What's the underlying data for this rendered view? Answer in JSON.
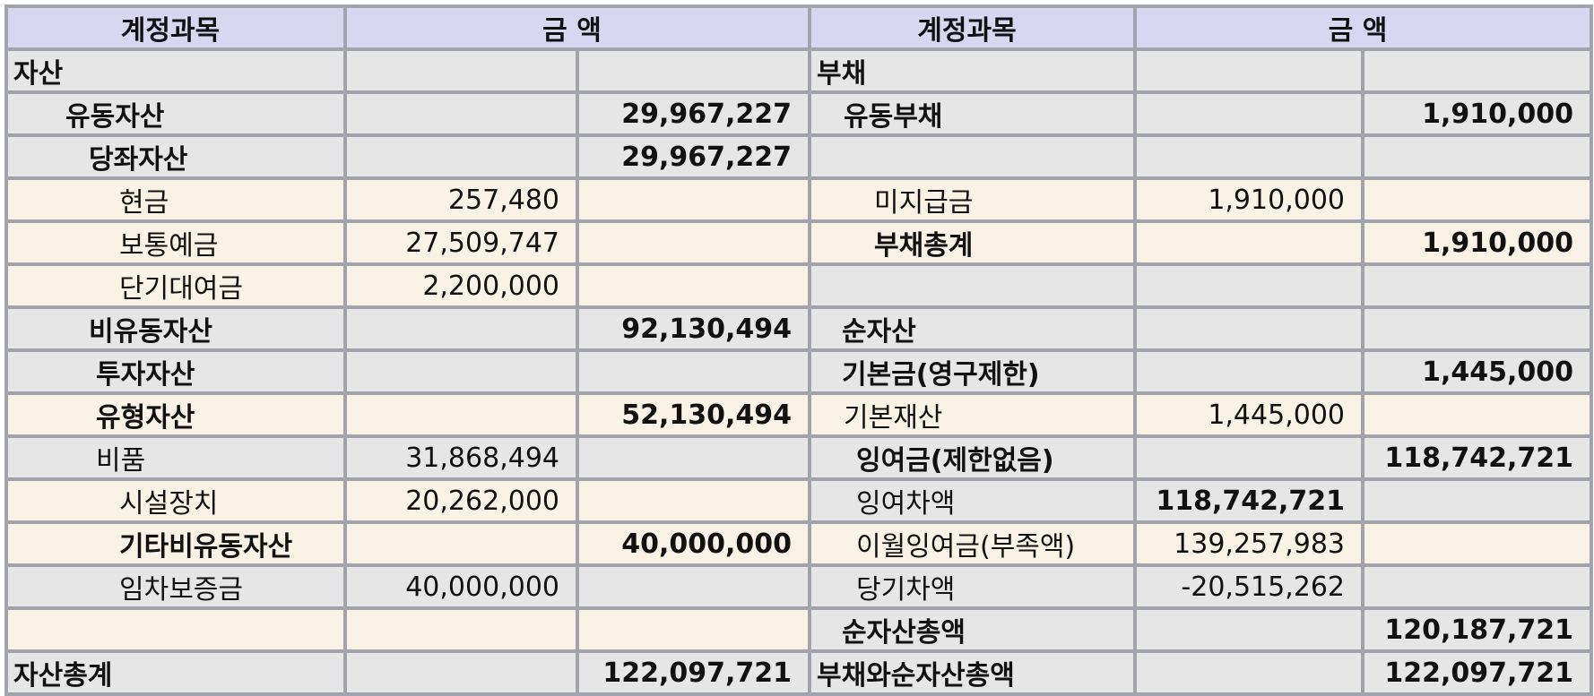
{
  "header": {
    "left_account": "계정과목",
    "left_amount": "금 액",
    "right_account": "계정과목",
    "right_amount": "금 액"
  },
  "rows": [
    {
      "la": "자산",
      "lb": "",
      "lc": "",
      "ra": "부채",
      "rb": "",
      "rc": ""
    },
    {
      "la": "유동자산",
      "lb": "",
      "lc": "29,967,227",
      "ra": "유동부채",
      "rb": "",
      "rc": "1,910,000"
    },
    {
      "la": "당좌자산",
      "lb": "",
      "lc": "29,967,227",
      "ra": "",
      "rb": "",
      "rc": ""
    },
    {
      "la": "현금",
      "lb": "257,480",
      "lc": "",
      "ra": "미지급금",
      "rb": "1,910,000",
      "rc": ""
    },
    {
      "la": "보통예금",
      "lb": "27,509,747",
      "lc": "",
      "ra": "부채총계",
      "rb": "",
      "rc": "1,910,000"
    },
    {
      "la": "단기대여금",
      "lb": "2,200,000",
      "lc": "",
      "ra": "",
      "rb": "",
      "rc": ""
    },
    {
      "la": "비유동자산",
      "lb": "",
      "lc": "92,130,494",
      "ra": "순자산",
      "rb": "",
      "rc": ""
    },
    {
      "la": "투자자산",
      "lb": "",
      "lc": "",
      "ra": "기본금(영구제한)",
      "rb": "",
      "rc": "1,445,000"
    },
    {
      "la": "유형자산",
      "lb": "",
      "lc": "52,130,494",
      "ra": "기본재산",
      "rb": "1,445,000",
      "rc": ""
    },
    {
      "la": "비품",
      "lb": "31,868,494",
      "lc": "",
      "ra": "잉여금(제한없음)",
      "rb": "",
      "rc": "118,742,721"
    },
    {
      "la": "시설장치",
      "lb": "20,262,000",
      "lc": "",
      "ra": "잉여차액",
      "rb": "118,742,721",
      "rc": ""
    },
    {
      "la": "기타비유동자산",
      "lb": "",
      "lc": "40,000,000",
      "ra": "이월잉여금(부족액)",
      "rb": "139,257,983",
      "rc": ""
    },
    {
      "la": "임차보증금",
      "lb": "40,000,000",
      "lc": "",
      "ra": "당기차액",
      "rb": "-20,515,262",
      "rc": ""
    },
    {
      "la": "",
      "lb": "",
      "lc": "",
      "ra": "순자산총액",
      "rb": "",
      "rc": "120,187,721"
    },
    {
      "la": "자산총계",
      "lb": "",
      "lc": "122,097,721",
      "ra": "부채와순자산총액",
      "rb": "",
      "rc": "122,097,721"
    }
  ]
}
